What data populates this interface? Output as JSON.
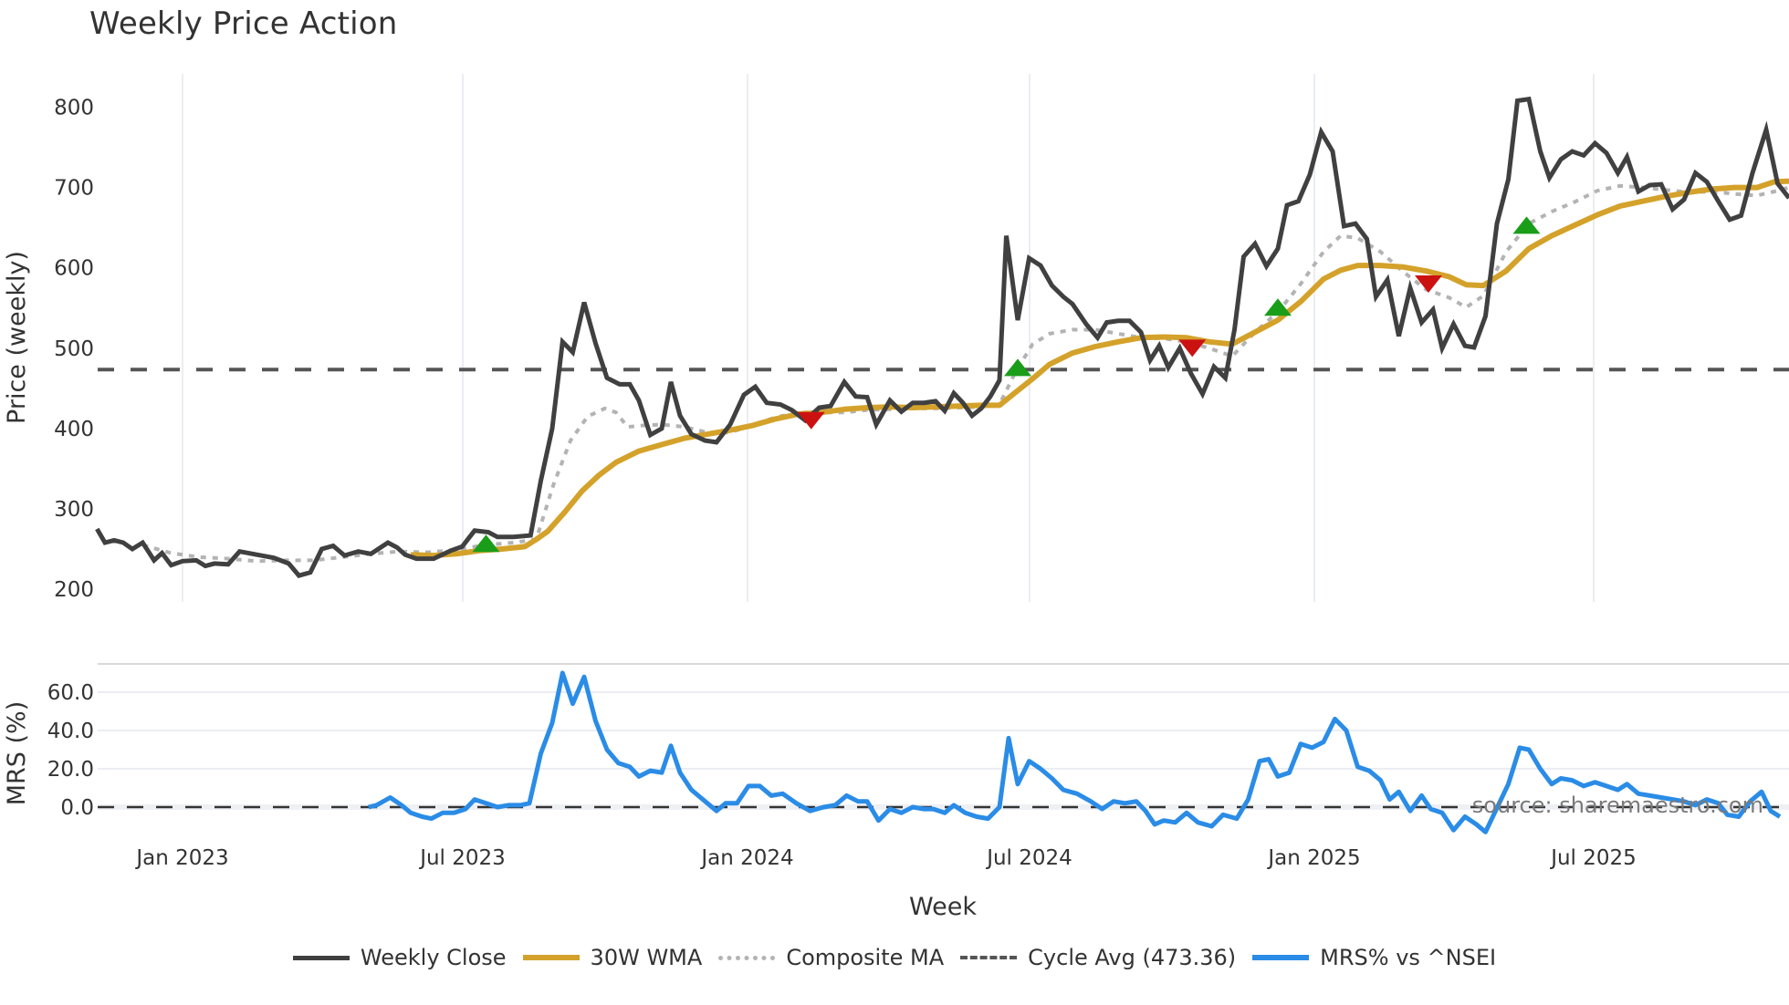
{
  "title": "Weekly Price Action",
  "axes": {
    "price_ylabel": "Price (weekly)",
    "mrs_ylabel": "MRS (%)",
    "xlabel": "Week",
    "price_ticks": [
      200,
      300,
      400,
      500,
      600,
      700,
      800
    ],
    "mrs_ticks": [
      "0.0",
      "20.0",
      "40.0",
      "60.0"
    ],
    "x_ticks": [
      "Jan 2023",
      "Jul 2023",
      "Jan 2024",
      "Jul 2024",
      "Jan 2025",
      "Jul 2025"
    ]
  },
  "source_note": "source: sharemaestro.com",
  "legend": [
    {
      "label": "Weekly Close",
      "color": "#404040",
      "style": "solid"
    },
    {
      "label": "30W WMA",
      "color": "#D4A22A",
      "style": "solid"
    },
    {
      "label": "Composite MA",
      "color": "#B3B3B3",
      "style": "dotted"
    },
    {
      "label": "Cycle Avg (473.36)",
      "color": "#555555",
      "style": "dashed"
    },
    {
      "label": "MRS% vs ^NSEI",
      "color": "#2A8CE6",
      "style": "solid"
    }
  ],
  "colors": {
    "close": "#404040",
    "wma": "#D4A22A",
    "composite": "#B3B3B3",
    "cycle_avg": "#555555",
    "mrs": "#2A8CE6",
    "buy_marker": "#1A9E1A",
    "sell_marker": "#CC1111",
    "grid": "#EBEDF2"
  },
  "chart_data": [
    {
      "type": "line",
      "title": "Weekly Price Action",
      "xlabel": "Week",
      "ylabel": "Price (weekly)",
      "ylim": [
        185,
        845
      ],
      "x_tick_labels": [
        "Jan 2023",
        "Jul 2023",
        "Jan 2024",
        "Jul 2024",
        "Jan 2025",
        "Jul 2025"
      ],
      "cycle_avg": 473.36,
      "x_preview": [
        85,
        92,
        100,
        108,
        116,
        125,
        135,
        142,
        150,
        160,
        172,
        180,
        188,
        200,
        210,
        225,
        240,
        253,
        262,
        272,
        282,
        292,
        302,
        314,
        325,
        340,
        348,
        355,
        365,
        380,
        395,
        405,
        416,
        428,
        436,
        450,
        465,
        474,
        484,
        493,
        502,
        512,
        522,
        532,
        543,
        552,
        560,
        570,
        580,
        588,
        596,
        606,
        618,
        628,
        640,
        652,
        662,
        672,
        684,
        694,
        706,
        718,
        728,
        740,
        750,
        760,
        768,
        780,
        790,
        800,
        810,
        820,
        828,
        836,
        844,
        852,
        860,
        868,
        876,
        882,
        892,
        902,
        912,
        922,
        932,
        940,
        952,
        962,
        970,
        980,
        990,
        1000,
        1008,
        1016,
        1024,
        1034,
        1044,
        1054,
        1064,
        1074,
        1082,
        1090,
        1100,
        1110,
        1120,
        1128,
        1138,
        1148,
        1158,
        1168,
        1178,
        1188,
        1198,
        1206,
        1216,
        1226,
        1236,
        1246,
        1256,
        1264,
        1274,
        1284,
        1292,
        1302,
        1312,
        1322,
        1330,
        1340,
        1350,
        1358,
        1368,
        1378,
        1388,
        1398,
        1408,
        1418,
        1426,
        1436,
        1446,
        1456,
        1466,
        1476,
        1486,
        1496,
        1506,
        1516,
        1526,
        1536,
        1548,
        1558,
        1568
      ],
      "series": [
        {
          "name": "Weekly Close",
          "values": [
            275,
            258,
            261,
            258,
            250,
            258,
            236,
            245,
            230,
            235,
            236,
            229,
            232,
            231,
            247,
            243,
            239,
            232,
            217,
            221,
            250,
            254,
            242,
            247,
            244,
            258,
            252,
            243,
            238,
            238,
            248,
            253,
            273,
            271,
            265,
            265,
            267,
            335,
            400,
            508,
            495,
            557,
            506,
            463,
            455,
            455,
            435,
            392,
            400,
            458,
            416,
            393,
            385,
            383,
            405,
            442,
            452,
            432,
            430,
            423,
            410,
            426,
            428,
            458,
            440,
            439,
            405,
            435,
            421,
            432,
            432,
            434,
            422,
            444,
            432,
            416,
            425,
            440,
            460,
            640,
            535,
            612,
            603,
            578,
            564,
            555,
            530,
            513,
            532,
            534,
            534,
            520,
            485,
            503,
            476,
            500,
            468,
            443,
            477,
            463,
            523,
            614,
            630,
            602,
            624,
            678,
            683,
            716,
            769,
            745,
            652,
            655,
            636,
            564,
            585,
            515,
            575,
            532,
            548,
            500,
            530,
            503,
            501,
            540,
            655,
            710,
            808,
            810,
            745,
            712,
            735,
            745,
            740,
            755,
            743,
            718,
            738,
            695,
            703,
            704,
            673,
            685,
            718,
            707,
            683,
            660,
            665,
            718,
            772,
            705,
            687
          ]
        }
      ],
      "wma": {
        "x_preview": [
          360,
          380,
          400,
          420,
          440,
          460,
          470,
          480,
          495,
          510,
          525,
          540,
          560,
          580,
          600,
          620,
          640,
          660,
          680,
          700,
          720,
          740,
          760,
          780,
          800,
          820,
          840,
          860,
          876,
          890,
          905,
          920,
          940,
          960,
          980,
          1000,
          1020,
          1040,
          1060,
          1080,
          1100,
          1120,
          1140,
          1160,
          1175,
          1190,
          1210,
          1230,
          1250,
          1270,
          1285,
          1300,
          1320,
          1340,
          1360,
          1380,
          1400,
          1420,
          1440,
          1460,
          1480,
          1500,
          1520,
          1540,
          1555,
          1568
        ],
        "values": [
          243,
          242,
          244,
          248,
          250,
          253,
          262,
          272,
          296,
          322,
          342,
          358,
          372,
          380,
          388,
          393,
          398,
          404,
          412,
          418,
          420,
          424,
          426,
          427,
          426,
          427,
          428,
          429,
          429,
          445,
          462,
          480,
          494,
          502,
          508,
          513,
          514,
          513,
          508,
          505,
          520,
          535,
          558,
          586,
          597,
          603,
          603,
          601,
          596,
          589,
          579,
          578,
          596,
          624,
          640,
          653,
          666,
          677,
          683,
          689,
          694,
          698,
          700,
          700,
          707,
          708
        ]
      },
      "composite_ma": {
        "x_preview": [
          125,
          150,
          175,
          200,
          225,
          250,
          275,
          300,
          325,
          350,
          375,
          400,
          425,
          450,
          470,
          485,
          500,
          515,
          530,
          540,
          550,
          565,
          580,
          600,
          620,
          640,
          660,
          680,
          700,
          720,
          740,
          760,
          780,
          800,
          820,
          840,
          860,
          876,
          890,
          905,
          920,
          940,
          960,
          980,
          1000,
          1020,
          1040,
          1060,
          1080,
          1100,
          1120,
          1140,
          1160,
          1175,
          1190,
          1210,
          1230,
          1250,
          1270,
          1285,
          1300,
          1320,
          1340,
          1360,
          1380,
          1400,
          1420,
          1440,
          1460,
          1480,
          1500,
          1520,
          1540,
          1555,
          1568
        ],
        "values": [
          255,
          245,
          240,
          238,
          235,
          236,
          236,
          240,
          244,
          247,
          246,
          249,
          255,
          258,
          262,
          330,
          385,
          415,
          425,
          420,
          402,
          404,
          405,
          402,
          395,
          395,
          405,
          414,
          420,
          420,
          420,
          423,
          424,
          425,
          425,
          426,
          427,
          430,
          470,
          505,
          518,
          523,
          523,
          518,
          513,
          512,
          508,
          500,
          490,
          520,
          545,
          580,
          620,
          640,
          637,
          620,
          595,
          573,
          563,
          551,
          565,
          620,
          655,
          670,
          682,
          696,
          702,
          700,
          697,
          694,
          695,
          692,
          690,
          695,
          700
        ]
      },
      "signals": [
        {
          "type": "buy",
          "x_preview": 426,
          "price": 256
        },
        {
          "type": "sell",
          "x_preview": 711,
          "price": 411
        },
        {
          "type": "buy",
          "x_preview": 892,
          "price": 475
        },
        {
          "type": "sell",
          "x_preview": 1045,
          "price": 501
        },
        {
          "type": "buy",
          "x_preview": 1120,
          "price": 550
        },
        {
          "type": "sell",
          "x_preview": 1252,
          "price": 581
        },
        {
          "type": "buy",
          "x_preview": 1338,
          "price": 652
        }
      ]
    },
    {
      "type": "line",
      "ylabel": "MRS (%)",
      "ylim": [
        -15,
        70
      ],
      "series": [
        {
          "name": "MRS% vs ^NSEI",
          "x_preview": [
            323,
            330,
            342,
            352,
            360,
            370,
            378,
            388,
            398,
            408,
            416,
            426,
            436,
            446,
            456,
            464,
            474,
            484,
            493,
            502,
            512,
            522,
            532,
            542,
            552,
            560,
            570,
            580,
            588,
            596,
            606,
            618,
            628,
            636,
            646,
            656,
            666,
            676,
            686,
            698,
            710,
            722,
            732,
            742,
            752,
            760,
            770,
            780,
            790,
            800,
            810,
            818,
            828,
            836,
            846,
            856,
            866,
            876,
            884,
            892,
            902,
            912,
            922,
            932,
            944,
            956,
            966,
            976,
            986,
            996,
            1004,
            1012,
            1020,
            1030,
            1040,
            1050,
            1062,
            1072,
            1084,
            1094,
            1104,
            1112,
            1120,
            1130,
            1140,
            1150,
            1160,
            1170,
            1180,
            1190,
            1200,
            1210,
            1218,
            1226,
            1236,
            1246,
            1254,
            1264,
            1274,
            1284,
            1294,
            1302,
            1310,
            1322,
            1332,
            1340,
            1350,
            1360,
            1368,
            1378,
            1388,
            1398,
            1408,
            1418,
            1426,
            1436,
            1446,
            1456,
            1466,
            1476,
            1486,
            1496,
            1506,
            1514,
            1524,
            1534,
            1544,
            1552,
            1560,
            1568
          ],
          "values": [
            0,
            1,
            5,
            1,
            -3,
            -5,
            -6,
            -3,
            -3,
            -1,
            4,
            2,
            0,
            1,
            1,
            2,
            28,
            44,
            70,
            54,
            68,
            45,
            30,
            23,
            21,
            16,
            19,
            18,
            32,
            18,
            9,
            3,
            -2,
            2,
            2,
            11,
            11,
            6,
            7,
            2,
            -2,
            0,
            1,
            6,
            3,
            3,
            -7,
            -1,
            -3,
            0,
            -1,
            -1,
            -3,
            1,
            -3,
            -5,
            -6,
            0,
            36,
            12,
            24,
            20,
            15,
            9,
            7,
            3,
            -1,
            3,
            2,
            3,
            -2,
            -9,
            -7,
            -8,
            -3,
            -8,
            -10,
            -4,
            -6,
            4,
            24,
            25,
            16,
            18,
            33,
            31,
            34,
            46,
            40,
            21,
            19,
            14,
            4,
            8,
            -2,
            6,
            -1,
            -3,
            -12,
            -5,
            -9,
            -13,
            -3,
            12,
            31,
            30,
            20,
            12,
            15,
            14,
            11,
            13,
            11,
            9,
            12,
            7,
            6,
            5,
            4,
            3,
            1,
            4,
            2,
            -4,
            -5,
            3,
            8,
            -2,
            -5
          ]
        }
      ],
      "zero_line": 0
    }
  ]
}
